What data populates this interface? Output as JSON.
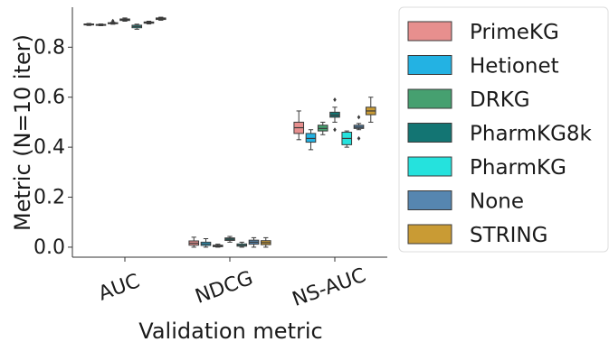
{
  "chart_data": {
    "type": "box",
    "xlabel": "Validation metric",
    "ylabel": "Metric (N=10 iter)",
    "categories": [
      "AUC",
      "NDCG",
      "NS-AUC"
    ],
    "ylim": [
      -0.04,
      0.96
    ],
    "yticks": [
      0.0,
      0.2,
      0.4,
      0.6,
      0.8
    ],
    "ytick_labels": [
      "0.0",
      "0.2",
      "0.4",
      "0.6",
      "0.8"
    ],
    "grid": false,
    "legend_position": "outside-right",
    "series": [
      {
        "name": "PrimeKG",
        "color": "#e78f8e",
        "boxes": [
          {
            "min": 0.887,
            "q1": 0.889,
            "median": 0.891,
            "q3": 0.893,
            "max": 0.895,
            "outliers": []
          },
          {
            "min": 0.0,
            "q1": 0.008,
            "median": 0.016,
            "q3": 0.025,
            "max": 0.04,
            "outliers": []
          },
          {
            "min": 0.43,
            "q1": 0.455,
            "median": 0.478,
            "q3": 0.5,
            "max": 0.545,
            "outliers": []
          }
        ]
      },
      {
        "name": "Hetionet",
        "color": "#23b2e3",
        "boxes": [
          {
            "min": 0.886,
            "q1": 0.888,
            "median": 0.89,
            "q3": 0.891,
            "max": 0.893,
            "outliers": []
          },
          {
            "min": 0.0,
            "q1": 0.007,
            "median": 0.013,
            "q3": 0.02,
            "max": 0.034,
            "outliers": []
          },
          {
            "min": 0.39,
            "q1": 0.42,
            "median": 0.435,
            "q3": 0.455,
            "max": 0.47,
            "outliers": []
          }
        ]
      },
      {
        "name": "DRKG",
        "color": "#46a070",
        "boxes": [
          {
            "min": 0.892,
            "q1": 0.894,
            "median": 0.896,
            "q3": 0.898,
            "max": 0.9,
            "outliers": [
              0.905
            ]
          },
          {
            "min": 0.0,
            "q1": 0.002,
            "median": 0.005,
            "q3": 0.008,
            "max": 0.012,
            "outliers": []
          },
          {
            "min": 0.45,
            "q1": 0.465,
            "median": 0.475,
            "q3": 0.488,
            "max": 0.5,
            "outliers": []
          }
        ]
      },
      {
        "name": "PharmKG8k",
        "color": "#137573",
        "boxes": [
          {
            "min": 0.904,
            "q1": 0.907,
            "median": 0.91,
            "q3": 0.913,
            "max": 0.917,
            "outliers": []
          },
          {
            "min": 0.02,
            "q1": 0.027,
            "median": 0.032,
            "q3": 0.037,
            "max": 0.043,
            "outliers": []
          },
          {
            "min": 0.5,
            "q1": 0.52,
            "median": 0.528,
            "q3": 0.54,
            "max": 0.56,
            "outliers": [
              0.59,
              0.47
            ]
          }
        ]
      },
      {
        "name": "PharmKG",
        "color": "#25e2dd",
        "boxes": [
          {
            "min": 0.872,
            "q1": 0.878,
            "median": 0.883,
            "q3": 0.888,
            "max": 0.892,
            "outliers": []
          },
          {
            "min": 0.0,
            "q1": 0.004,
            "median": 0.008,
            "q3": 0.013,
            "max": 0.02,
            "outliers": []
          },
          {
            "min": 0.4,
            "q1": 0.41,
            "median": 0.435,
            "q3": 0.46,
            "max": 0.465,
            "outliers": []
          }
        ]
      },
      {
        "name": "None",
        "color": "#5686b0",
        "boxes": [
          {
            "min": 0.893,
            "q1": 0.896,
            "median": 0.899,
            "q3": 0.901,
            "max": 0.904,
            "outliers": []
          },
          {
            "min": 0.0,
            "q1": 0.012,
            "median": 0.02,
            "q3": 0.028,
            "max": 0.038,
            "outliers": []
          },
          {
            "min": 0.47,
            "q1": 0.475,
            "median": 0.48,
            "q3": 0.488,
            "max": 0.495,
            "outliers": [
              0.52,
              0.435
            ]
          }
        ]
      },
      {
        "name": "STRING",
        "color": "#c99b34",
        "boxes": [
          {
            "min": 0.908,
            "q1": 0.911,
            "median": 0.914,
            "q3": 0.917,
            "max": 0.92,
            "outliers": []
          },
          {
            "min": 0.0,
            "q1": 0.01,
            "median": 0.018,
            "q3": 0.026,
            "max": 0.038,
            "outliers": []
          },
          {
            "min": 0.5,
            "q1": 0.53,
            "median": 0.545,
            "q3": 0.56,
            "max": 0.6,
            "outliers": []
          }
        ]
      }
    ]
  }
}
